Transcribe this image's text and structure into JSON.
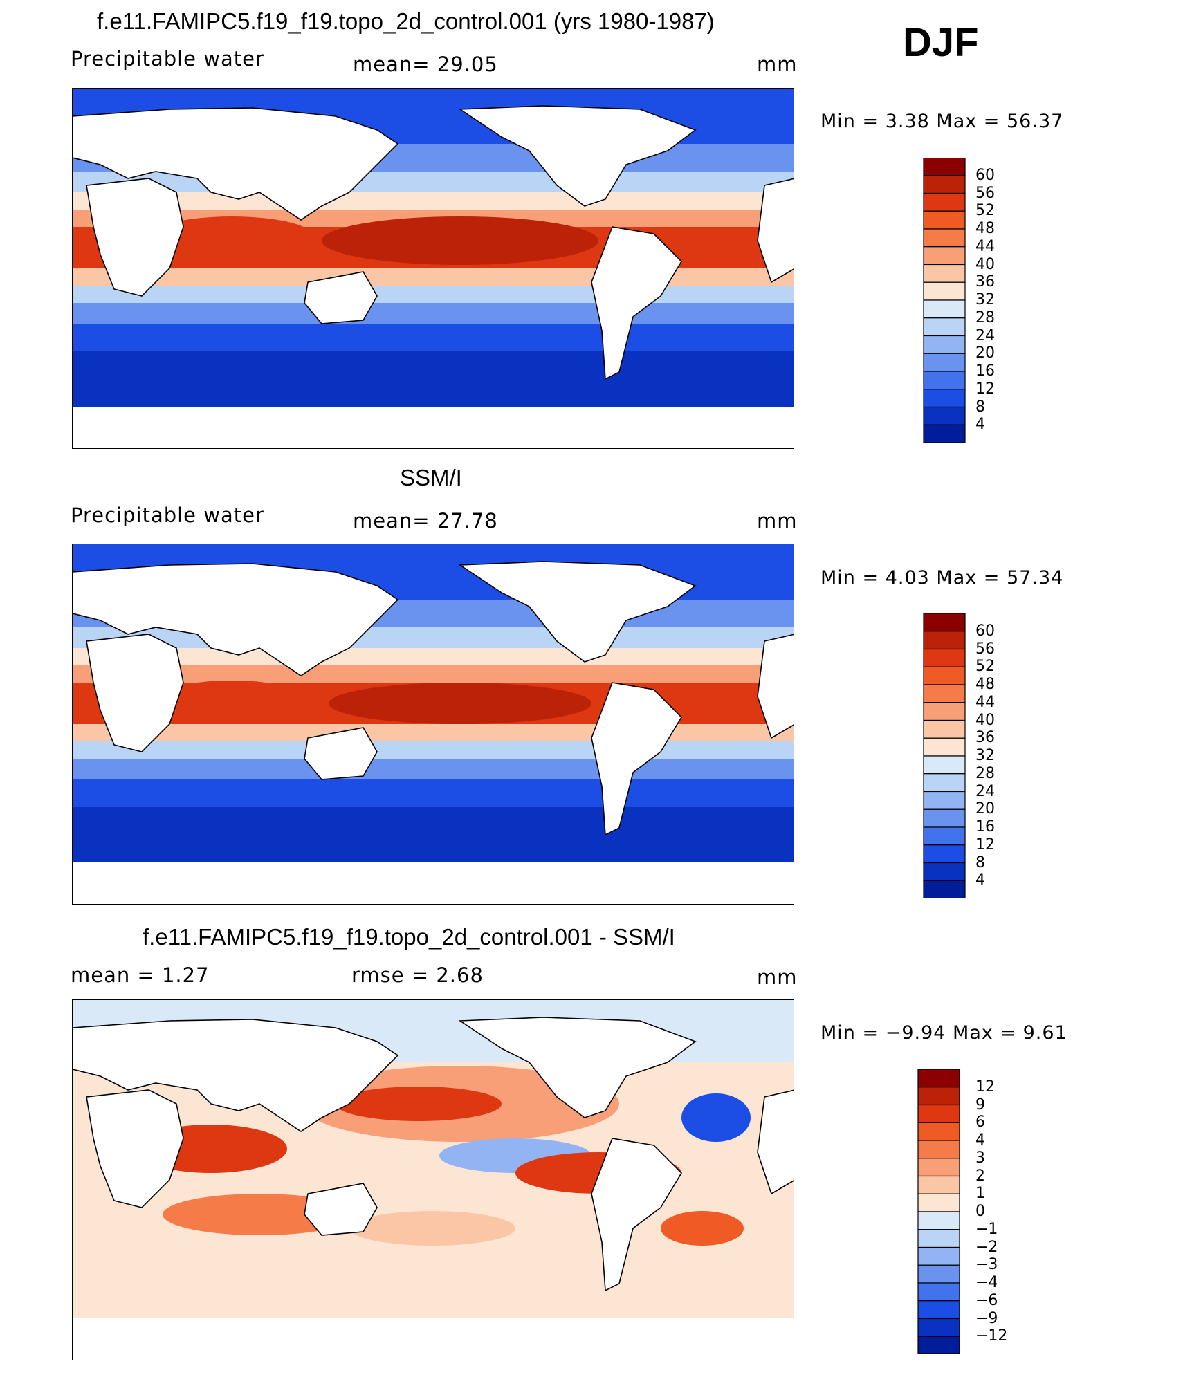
{
  "season": "DJF",
  "panels": [
    {
      "title": "f.e11.FAMIPC5.f19_f19.topo_2d_control.001 (yrs 1980-1987)",
      "left_label": "Precipitable  water",
      "mid_label": "mean=   29.05",
      "units": "mm",
      "minmax": "Min  =      3.38  Max  =     56.37",
      "stats": {
        "mean": 29.05,
        "min": 3.38,
        "max": 56.37
      }
    },
    {
      "title": "SSM/I",
      "left_label": "Precipitable  water",
      "mid_label": "mean=   27.78",
      "units": "mm",
      "minmax": "Min  =      4.03  Max  =     57.34",
      "stats": {
        "mean": 27.78,
        "min": 4.03,
        "max": 57.34
      }
    },
    {
      "title": "f.e11.FAMIPC5.f19_f19.topo_2d_control.001 - SSM/I",
      "left_label": "mean  =      1.27",
      "mid_label": "rmse  =      2.68",
      "units": "mm",
      "minmax": "Min  =    −9.94  Max  =      9.61",
      "stats": {
        "mean": 1.27,
        "rmse": 2.68,
        "min": -9.94,
        "max": 9.61
      }
    }
  ],
  "colorbars": {
    "field": {
      "ticks": [
        "60",
        "56",
        "52",
        "48",
        "44",
        "40",
        "36",
        "32",
        "28",
        "24",
        "20",
        "16",
        "12",
        "8",
        "4"
      ],
      "colors": [
        "#8b0000",
        "#bb2208",
        "#dd3812",
        "#f05a25",
        "#f57b48",
        "#f89f78",
        "#fbc6a6",
        "#fde5d3",
        "#dae9f8",
        "#b9d4f5",
        "#92b4f2",
        "#6a93ef",
        "#4272ec",
        "#1c4ee6",
        "#0a32c0",
        "#001e9a"
      ]
    },
    "diff": {
      "ticks": [
        "12",
        "9",
        "6",
        "4",
        "3",
        "2",
        "1",
        "0",
        "−1",
        "−2",
        "−3",
        "−4",
        "−6",
        "−9",
        "−12"
      ],
      "colors": [
        "#8b0000",
        "#bb2208",
        "#dd3812",
        "#f05a25",
        "#f57b48",
        "#f89f78",
        "#fbc6a6",
        "#fde5d3",
        "#dae9f8",
        "#b9d4f5",
        "#92b4f2",
        "#6a93ef",
        "#4272ec",
        "#1c4ee6",
        "#0a32c0",
        "#001e9a"
      ]
    }
  }
}
